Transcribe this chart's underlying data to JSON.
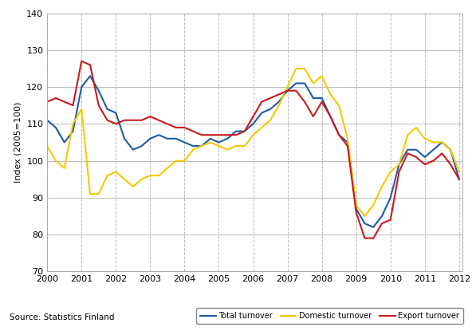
{
  "title": "",
  "ylabel": "Index (2005=100)",
  "xlabel": "",
  "source_text": "Source: Statistics Finland",
  "ylim": [
    70,
    140
  ],
  "yticks": [
    70,
    80,
    90,
    100,
    110,
    120,
    130,
    140
  ],
  "x_start_year": 2000,
  "x_end_year": 2012,
  "x_tick_years": [
    2000,
    2001,
    2002,
    2003,
    2004,
    2005,
    2006,
    2007,
    2008,
    2009,
    2010,
    2011,
    2012
  ],
  "series": {
    "total": {
      "label": "Total turnover",
      "color": "#1f5aa8",
      "linewidth": 1.5,
      "values": [
        111,
        109,
        105,
        108,
        120,
        123,
        119,
        114,
        113,
        106,
        103,
        104,
        106,
        107,
        106,
        106,
        105,
        104,
        104,
        106,
        105,
        106,
        108,
        108,
        110,
        113,
        114,
        116,
        119,
        121,
        121,
        117,
        117,
        112,
        107,
        105,
        87,
        83,
        82,
        85,
        90,
        99,
        103,
        103,
        101,
        103,
        105,
        103,
        95
      ]
    },
    "domestic": {
      "label": "Domestic turnover",
      "color": "#f5c800",
      "linewidth": 1.5,
      "values": [
        104,
        100,
        98,
        110,
        114,
        91,
        91,
        96,
        97,
        95,
        93,
        95,
        96,
        96,
        98,
        100,
        100,
        103,
        104,
        105,
        104,
        103,
        104,
        104,
        107,
        109,
        111,
        115,
        120,
        125,
        125,
        121,
        123,
        118,
        115,
        106,
        88,
        85,
        88,
        93,
        97,
        99,
        107,
        109,
        106,
        105,
        105,
        103,
        97
      ]
    },
    "export": {
      "label": "Export turnover",
      "color": "#c8191e",
      "linewidth": 1.5,
      "values": [
        116,
        117,
        116,
        115,
        127,
        126,
        115,
        111,
        110,
        111,
        111,
        111,
        112,
        111,
        110,
        109,
        109,
        108,
        107,
        107,
        107,
        107,
        107,
        108,
        112,
        116,
        117,
        118,
        119,
        119,
        116,
        112,
        116,
        112,
        107,
        104,
        86,
        79,
        79,
        83,
        84,
        97,
        102,
        101,
        99,
        100,
        102,
        99,
        95
      ]
    }
  },
  "grid_color": "#bbbbbb",
  "background_color": "#ffffff"
}
